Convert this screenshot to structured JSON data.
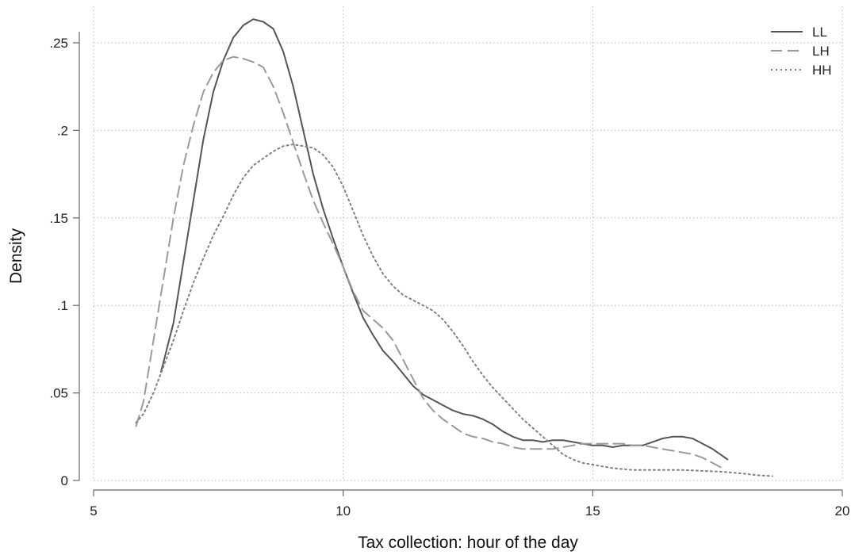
{
  "chart_data": {
    "type": "line",
    "title": "",
    "xlabel": "Tax collection: hour of the day",
    "ylabel": "Density",
    "xlim": [
      5,
      20
    ],
    "ylim": [
      0,
      0.27
    ],
    "xticks": [
      5,
      10,
      15,
      20
    ],
    "xtick_labels": [
      "5",
      "10",
      "15",
      "20"
    ],
    "yticks": [
      0,
      0.05,
      0.1,
      0.15,
      0.2,
      0.25
    ],
    "ytick_labels": [
      "0",
      ".05",
      ".1",
      ".15",
      ".2",
      ".25"
    ],
    "grid": true,
    "legend": "top-right",
    "series": [
      {
        "name": "LL",
        "color": "#555555",
        "dash": "solid",
        "points": [
          [
            6.35,
            0.062
          ],
          [
            6.6,
            0.09
          ],
          [
            6.8,
            0.125
          ],
          [
            7.0,
            0.16
          ],
          [
            7.2,
            0.195
          ],
          [
            7.4,
            0.222
          ],
          [
            7.6,
            0.24
          ],
          [
            7.8,
            0.253
          ],
          [
            8.0,
            0.26
          ],
          [
            8.2,
            0.2635
          ],
          [
            8.4,
            0.262
          ],
          [
            8.6,
            0.258
          ],
          [
            8.8,
            0.245
          ],
          [
            9.0,
            0.225
          ],
          [
            9.2,
            0.2
          ],
          [
            9.4,
            0.175
          ],
          [
            9.6,
            0.155
          ],
          [
            9.8,
            0.138
          ],
          [
            10.0,
            0.122
          ],
          [
            10.2,
            0.107
          ],
          [
            10.4,
            0.093
          ],
          [
            10.6,
            0.083
          ],
          [
            10.8,
            0.074
          ],
          [
            11.0,
            0.068
          ],
          [
            11.2,
            0.061
          ],
          [
            11.4,
            0.054
          ],
          [
            11.6,
            0.049
          ],
          [
            11.8,
            0.046
          ],
          [
            12.0,
            0.043
          ],
          [
            12.2,
            0.04
          ],
          [
            12.4,
            0.038
          ],
          [
            12.6,
            0.037
          ],
          [
            12.8,
            0.035
          ],
          [
            13.0,
            0.032
          ],
          [
            13.2,
            0.028
          ],
          [
            13.4,
            0.025
          ],
          [
            13.6,
            0.023
          ],
          [
            13.8,
            0.023
          ],
          [
            14.0,
            0.022
          ],
          [
            14.2,
            0.023
          ],
          [
            14.4,
            0.023
          ],
          [
            14.6,
            0.022
          ],
          [
            14.8,
            0.021
          ],
          [
            15.0,
            0.02
          ],
          [
            15.2,
            0.02
          ],
          [
            15.4,
            0.019
          ],
          [
            15.6,
            0.02
          ],
          [
            15.8,
            0.02
          ],
          [
            16.0,
            0.02
          ],
          [
            16.2,
            0.022
          ],
          [
            16.4,
            0.024
          ],
          [
            16.6,
            0.025
          ],
          [
            16.8,
            0.025
          ],
          [
            17.0,
            0.024
          ],
          [
            17.2,
            0.021
          ],
          [
            17.4,
            0.018
          ],
          [
            17.6,
            0.014
          ],
          [
            17.7,
            0.012
          ]
        ]
      },
      {
        "name": "LH",
        "color": "#9a9a9a",
        "dash": "long-dash",
        "points": [
          [
            5.85,
            0.031
          ],
          [
            6.0,
            0.045
          ],
          [
            6.2,
            0.08
          ],
          [
            6.4,
            0.115
          ],
          [
            6.6,
            0.15
          ],
          [
            6.8,
            0.18
          ],
          [
            7.0,
            0.203
          ],
          [
            7.2,
            0.222
          ],
          [
            7.4,
            0.233
          ],
          [
            7.6,
            0.24
          ],
          [
            7.8,
            0.242
          ],
          [
            8.0,
            0.241
          ],
          [
            8.2,
            0.239
          ],
          [
            8.4,
            0.236
          ],
          [
            8.6,
            0.225
          ],
          [
            8.8,
            0.21
          ],
          [
            9.0,
            0.193
          ],
          [
            9.2,
            0.176
          ],
          [
            9.4,
            0.16
          ],
          [
            9.6,
            0.147
          ],
          [
            9.8,
            0.135
          ],
          [
            10.0,
            0.122
          ],
          [
            10.2,
            0.108
          ],
          [
            10.4,
            0.097
          ],
          [
            10.6,
            0.092
          ],
          [
            10.8,
            0.087
          ],
          [
            11.0,
            0.08
          ],
          [
            11.2,
            0.069
          ],
          [
            11.4,
            0.058
          ],
          [
            11.6,
            0.047
          ],
          [
            11.8,
            0.04
          ],
          [
            12.0,
            0.035
          ],
          [
            12.2,
            0.031
          ],
          [
            12.4,
            0.027
          ],
          [
            12.6,
            0.025
          ],
          [
            12.8,
            0.024
          ],
          [
            13.0,
            0.022
          ],
          [
            13.2,
            0.021
          ],
          [
            13.4,
            0.019
          ],
          [
            13.6,
            0.018
          ],
          [
            13.8,
            0.018
          ],
          [
            14.0,
            0.018
          ],
          [
            14.2,
            0.018
          ],
          [
            14.4,
            0.019
          ],
          [
            14.6,
            0.02
          ],
          [
            14.8,
            0.021
          ],
          [
            15.0,
            0.021
          ],
          [
            15.2,
            0.021
          ],
          [
            15.4,
            0.021
          ],
          [
            15.6,
            0.021
          ],
          [
            15.8,
            0.02
          ],
          [
            16.0,
            0.02
          ],
          [
            16.2,
            0.019
          ],
          [
            16.4,
            0.018
          ],
          [
            16.6,
            0.017
          ],
          [
            16.8,
            0.016
          ],
          [
            17.0,
            0.015
          ],
          [
            17.2,
            0.013
          ],
          [
            17.4,
            0.01
          ],
          [
            17.6,
            0.007
          ]
        ]
      },
      {
        "name": "HH",
        "color": "#808080",
        "dash": "dotted",
        "points": [
          [
            5.85,
            0.033
          ],
          [
            6.0,
            0.038
          ],
          [
            6.2,
            0.05
          ],
          [
            6.4,
            0.065
          ],
          [
            6.6,
            0.08
          ],
          [
            6.8,
            0.097
          ],
          [
            7.0,
            0.113
          ],
          [
            7.2,
            0.127
          ],
          [
            7.4,
            0.14
          ],
          [
            7.6,
            0.151
          ],
          [
            7.8,
            0.163
          ],
          [
            8.0,
            0.173
          ],
          [
            8.2,
            0.18
          ],
          [
            8.4,
            0.184
          ],
          [
            8.6,
            0.188
          ],
          [
            8.8,
            0.191
          ],
          [
            9.0,
            0.192
          ],
          [
            9.2,
            0.191
          ],
          [
            9.4,
            0.19
          ],
          [
            9.6,
            0.186
          ],
          [
            9.8,
            0.179
          ],
          [
            10.0,
            0.168
          ],
          [
            10.2,
            0.154
          ],
          [
            10.4,
            0.14
          ],
          [
            10.6,
            0.128
          ],
          [
            10.8,
            0.118
          ],
          [
            11.0,
            0.111
          ],
          [
            11.2,
            0.106
          ],
          [
            11.4,
            0.103
          ],
          [
            11.6,
            0.1
          ],
          [
            11.8,
            0.097
          ],
          [
            12.0,
            0.092
          ],
          [
            12.2,
            0.085
          ],
          [
            12.4,
            0.077
          ],
          [
            12.6,
            0.068
          ],
          [
            12.8,
            0.06
          ],
          [
            13.0,
            0.053
          ],
          [
            13.2,
            0.047
          ],
          [
            13.4,
            0.041
          ],
          [
            13.6,
            0.035
          ],
          [
            13.8,
            0.03
          ],
          [
            14.0,
            0.025
          ],
          [
            14.2,
            0.02
          ],
          [
            14.4,
            0.015
          ],
          [
            14.6,
            0.012
          ],
          [
            14.8,
            0.01
          ],
          [
            15.0,
            0.009
          ],
          [
            15.2,
            0.008
          ],
          [
            15.4,
            0.007
          ],
          [
            15.6,
            0.0065
          ],
          [
            15.8,
            0.006
          ],
          [
            16.0,
            0.006
          ],
          [
            16.4,
            0.006
          ],
          [
            16.8,
            0.006
          ],
          [
            17.2,
            0.0055
          ],
          [
            17.6,
            0.005
          ],
          [
            18.0,
            0.004
          ],
          [
            18.3,
            0.003
          ],
          [
            18.6,
            0.0025
          ]
        ]
      }
    ]
  }
}
